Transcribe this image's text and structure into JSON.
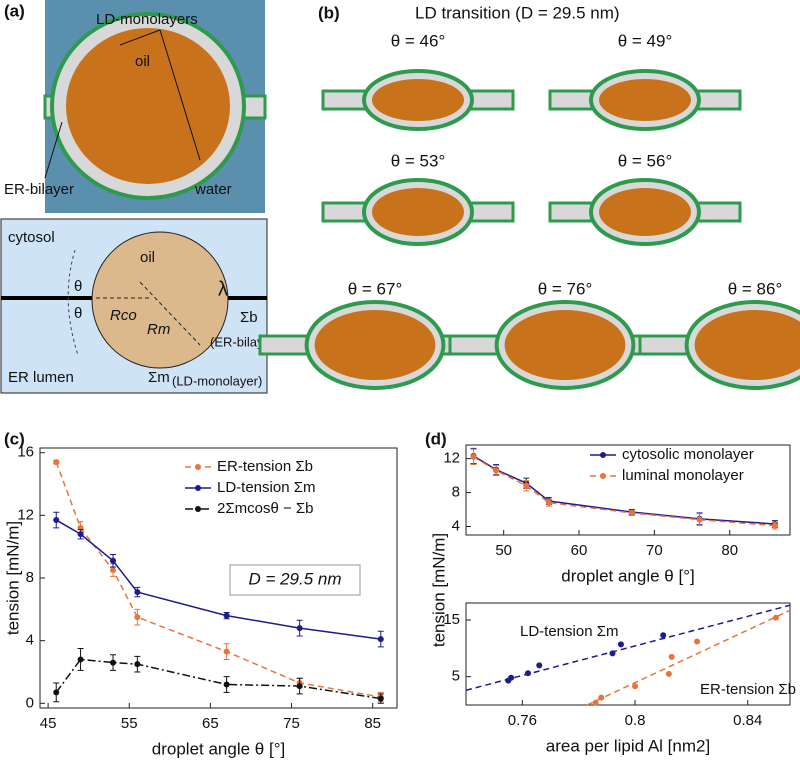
{
  "panel_a": {
    "label": "(a)",
    "sim_labels": [
      "LD-monolayers",
      "oil",
      "ER-bilayer",
      "water"
    ],
    "schematic_labels": [
      "cytosol",
      "oil",
      "λ",
      "Σb",
      "(ER-bilayer)",
      "ER lumen",
      "Σm",
      "(LD-monolayer)",
      "θ",
      "θ",
      "Rco",
      "Rm"
    ]
  },
  "panel_b": {
    "label": "(b)",
    "title": "LD transition (D = 29.5 nm)",
    "angles": [
      "θ = 46°",
      "θ = 49°",
      "θ = 53°",
      "θ = 56°",
      "θ = 67°",
      "θ = 76°",
      "θ = 86°"
    ]
  },
  "chart_data": [
    {
      "type": "line",
      "panel_label": "(c)",
      "x_label": "droplet angle θ [°]",
      "y_label": "tension [mN/m]",
      "annotation": "D = 29.5 nm",
      "x": [
        46,
        49,
        53,
        56,
        67,
        76,
        86
      ],
      "xlim": [
        44,
        88
      ],
      "xticks": [
        45,
        55,
        65,
        75,
        85
      ],
      "ylim": [
        -0.3,
        16.3
      ],
      "yticks": [
        0,
        4,
        8,
        12,
        16
      ],
      "series": [
        {
          "name": "ER-tension Σb",
          "color": "#e8743b",
          "linestyle": "dashed",
          "values": [
            15.4,
            11.2,
            8.5,
            5.5,
            3.3,
            1.3,
            0.4
          ],
          "errors": [
            0.1,
            0.4,
            0.4,
            0.5,
            0.5,
            0.3,
            0.3
          ]
        },
        {
          "name": "LD-tension Σm",
          "color": "#1c1c8c",
          "linestyle": "solid",
          "values": [
            11.7,
            10.8,
            9.1,
            7.1,
            5.6,
            4.8,
            4.1
          ],
          "errors": [
            0.5,
            0.3,
            0.4,
            0.3,
            0.2,
            0.5,
            0.5
          ]
        },
        {
          "name": "2Σmcosθ − Σb",
          "color": "#111111",
          "linestyle": "dashdot",
          "values": [
            0.7,
            2.8,
            2.6,
            2.5,
            1.2,
            1.1,
            0.3
          ],
          "errors": [
            0.6,
            0.7,
            0.5,
            0.5,
            0.5,
            0.5,
            0.3
          ]
        }
      ]
    },
    {
      "type": "line",
      "panel_label": "(d)",
      "x_label": "droplet angle θ [°]",
      "y_label": "tension [mN/m]",
      "x": [
        46,
        49,
        53,
        56,
        67,
        76,
        86
      ],
      "xlim": [
        45,
        88
      ],
      "xticks": [
        50,
        60,
        70,
        80
      ],
      "ylim": [
        3,
        13.6
      ],
      "yticks": [
        4,
        8,
        12
      ],
      "series": [
        {
          "name": "cytosolic monolayer",
          "color": "#1c1c8c",
          "linestyle": "solid",
          "values": [
            12.3,
            10.7,
            9.1,
            7.0,
            5.7,
            4.9,
            4.3
          ],
          "errors": [
            0.9,
            0.6,
            0.6,
            0.4,
            0.3,
            0.7,
            0.4
          ]
        },
        {
          "name": "luminal monolayer",
          "color": "#e8743b",
          "linestyle": "dashed",
          "values": [
            12.2,
            10.6,
            8.8,
            6.8,
            5.6,
            4.8,
            4.1
          ],
          "errors": [
            0.9,
            0.6,
            0.6,
            0.4,
            0.3,
            0.7,
            0.4
          ]
        }
      ]
    },
    {
      "type": "scatter",
      "x_label": "area per lipid Al [nm2]",
      "xlim": [
        0.74,
        0.855
      ],
      "xticks": [
        0.76,
        0.8,
        0.84
      ],
      "ylim": [
        0,
        18
      ],
      "yticks": [
        5,
        15
      ],
      "series": [
        {
          "name": "LD-tension Σm",
          "color": "#1c1c8c",
          "x": [
            0.755,
            0.756,
            0.762,
            0.766,
            0.792,
            0.795,
            0.81
          ],
          "values": [
            4.3,
            4.8,
            5.6,
            7.0,
            9.1,
            10.7,
            12.3
          ],
          "fit": {
            "x": [
              0.74,
              0.855
            ],
            "values": [
              2.6,
              17.6
            ]
          }
        },
        {
          "name": "ER-tension Σb",
          "color": "#e8743b",
          "x": [
            0.786,
            0.788,
            0.8,
            0.812,
            0.813,
            0.822,
            0.85
          ],
          "values": [
            0.4,
            1.3,
            3.3,
            5.5,
            8.5,
            11.2,
            15.4
          ],
          "fit": {
            "x": [
              0.783,
              0.855
            ],
            "values": [
              0,
              16.7
            ]
          }
        }
      ]
    }
  ]
}
